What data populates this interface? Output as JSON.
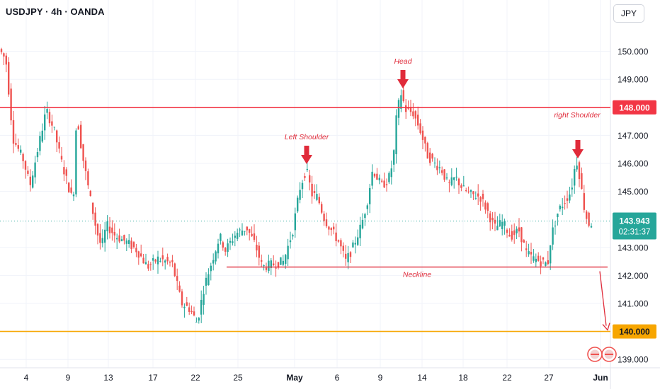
{
  "header": {
    "symbol_title": "USDJPY · 4h · OANDA",
    "currency": "JPY"
  },
  "colors": {
    "up": "#26a69a",
    "down": "#ef5350",
    "level": "#f23645",
    "support": "#f7a600",
    "annotation": "#e02b3a",
    "last_price_line": "#26a69a"
  },
  "chart_data": {
    "type": "candlestick",
    "symbol": "USDJPY",
    "timeframe": "4h",
    "source": "OANDA",
    "y_axis": {
      "ticks": [
        "150.000",
        "149.000",
        "147.000",
        "146.000",
        "145.000",
        "143.000",
        "142.000",
        "141.000",
        "139.000"
      ],
      "range": [
        138.7,
        151.2
      ]
    },
    "x_axis": {
      "ticks": [
        "4",
        "9",
        "13",
        "17",
        "22",
        "25",
        "May",
        "6",
        "9",
        "14",
        "18",
        "22",
        "27",
        "Jun"
      ]
    },
    "price_path": [
      [
        0,
        150.1
      ],
      [
        10,
        149.7
      ],
      [
        20,
        146.9
      ],
      [
        35,
        146.1
      ],
      [
        44,
        145.2
      ],
      [
        55,
        146.5
      ],
      [
        67,
        147.9
      ],
      [
        78,
        147.2
      ],
      [
        88,
        146.1
      ],
      [
        98,
        145.2
      ],
      [
        105,
        144.6
      ],
      [
        110,
        147.8
      ],
      [
        118,
        146.3
      ],
      [
        128,
        144.9
      ],
      [
        138,
        143.6
      ],
      [
        145,
        143.0
      ],
      [
        152,
        143.8
      ],
      [
        165,
        143.4
      ],
      [
        180,
        143.2
      ],
      [
        195,
        142.9
      ],
      [
        210,
        142.3
      ],
      [
        225,
        142.6
      ],
      [
        245,
        142.4
      ],
      [
        258,
        141.0
      ],
      [
        270,
        140.8
      ],
      [
        280,
        140.3
      ],
      [
        290,
        141.6
      ],
      [
        302,
        142.6
      ],
      [
        312,
        143.4
      ],
      [
        320,
        142.9
      ],
      [
        335,
        143.5
      ],
      [
        350,
        143.7
      ],
      [
        362,
        143.1
      ],
      [
        372,
        142.3
      ],
      [
        388,
        142.4
      ],
      [
        402,
        142.5
      ],
      [
        415,
        143.6
      ],
      [
        425,
        145.1
      ],
      [
        434,
        145.8
      ],
      [
        442,
        144.9
      ],
      [
        450,
        144.8
      ],
      [
        460,
        144.0
      ],
      [
        470,
        143.6
      ],
      [
        480,
        143.2
      ],
      [
        490,
        142.5
      ],
      [
        500,
        143.0
      ],
      [
        512,
        143.8
      ],
      [
        520,
        144.6
      ],
      [
        528,
        145.8
      ],
      [
        540,
        145.2
      ],
      [
        550,
        145.4
      ],
      [
        557,
        146.1
      ],
      [
        562,
        147.8
      ],
      [
        568,
        148.5
      ],
      [
        575,
        147.9
      ],
      [
        585,
        147.8
      ],
      [
        595,
        147.2
      ],
      [
        605,
        146.3
      ],
      [
        615,
        146.0
      ],
      [
        625,
        145.8
      ],
      [
        635,
        145.2
      ],
      [
        645,
        145.5
      ],
      [
        655,
        145.1
      ],
      [
        665,
        144.9
      ],
      [
        680,
        144.8
      ],
      [
        690,
        144.3
      ],
      [
        700,
        143.7
      ],
      [
        712,
        143.9
      ],
      [
        722,
        143.4
      ],
      [
        735,
        143.6
      ],
      [
        745,
        142.8
      ],
      [
        755,
        142.6
      ],
      [
        765,
        142.5
      ],
      [
        775,
        142.4
      ],
      [
        780,
        143.4
      ],
      [
        790,
        144.3
      ],
      [
        800,
        144.7
      ],
      [
        808,
        145.0
      ],
      [
        813,
        145.8
      ],
      [
        817,
        146.1
      ],
      [
        822,
        145.2
      ],
      [
        828,
        144.2
      ],
      [
        834,
        143.8
      ],
      [
        838,
        143.9
      ]
    ],
    "horizontal_levels": [
      {
        "price": 148.0,
        "label": "148.000",
        "color": "#f23645",
        "style": "resistance"
      },
      {
        "price": 140.0,
        "label": "140.000",
        "color": "#f7a600",
        "style": "target"
      }
    ],
    "last_price": {
      "value": "143.943",
      "countdown": "02:31:37",
      "price": 143.943
    },
    "neckline": {
      "from_x_label": "25",
      "to_x_label": "Jun",
      "price": 142.3,
      "label": "Neckline"
    },
    "pattern_annotations": [
      {
        "label": "Left Shoulder",
        "arrow_price": 145.9
      },
      {
        "label": "Head",
        "arrow_price": 148.6
      },
      {
        "label": "right Shoulder",
        "arrow_price": 146.1
      }
    ],
    "projection_arrow": {
      "from_price": 142.3,
      "to_price": 140.0
    }
  }
}
